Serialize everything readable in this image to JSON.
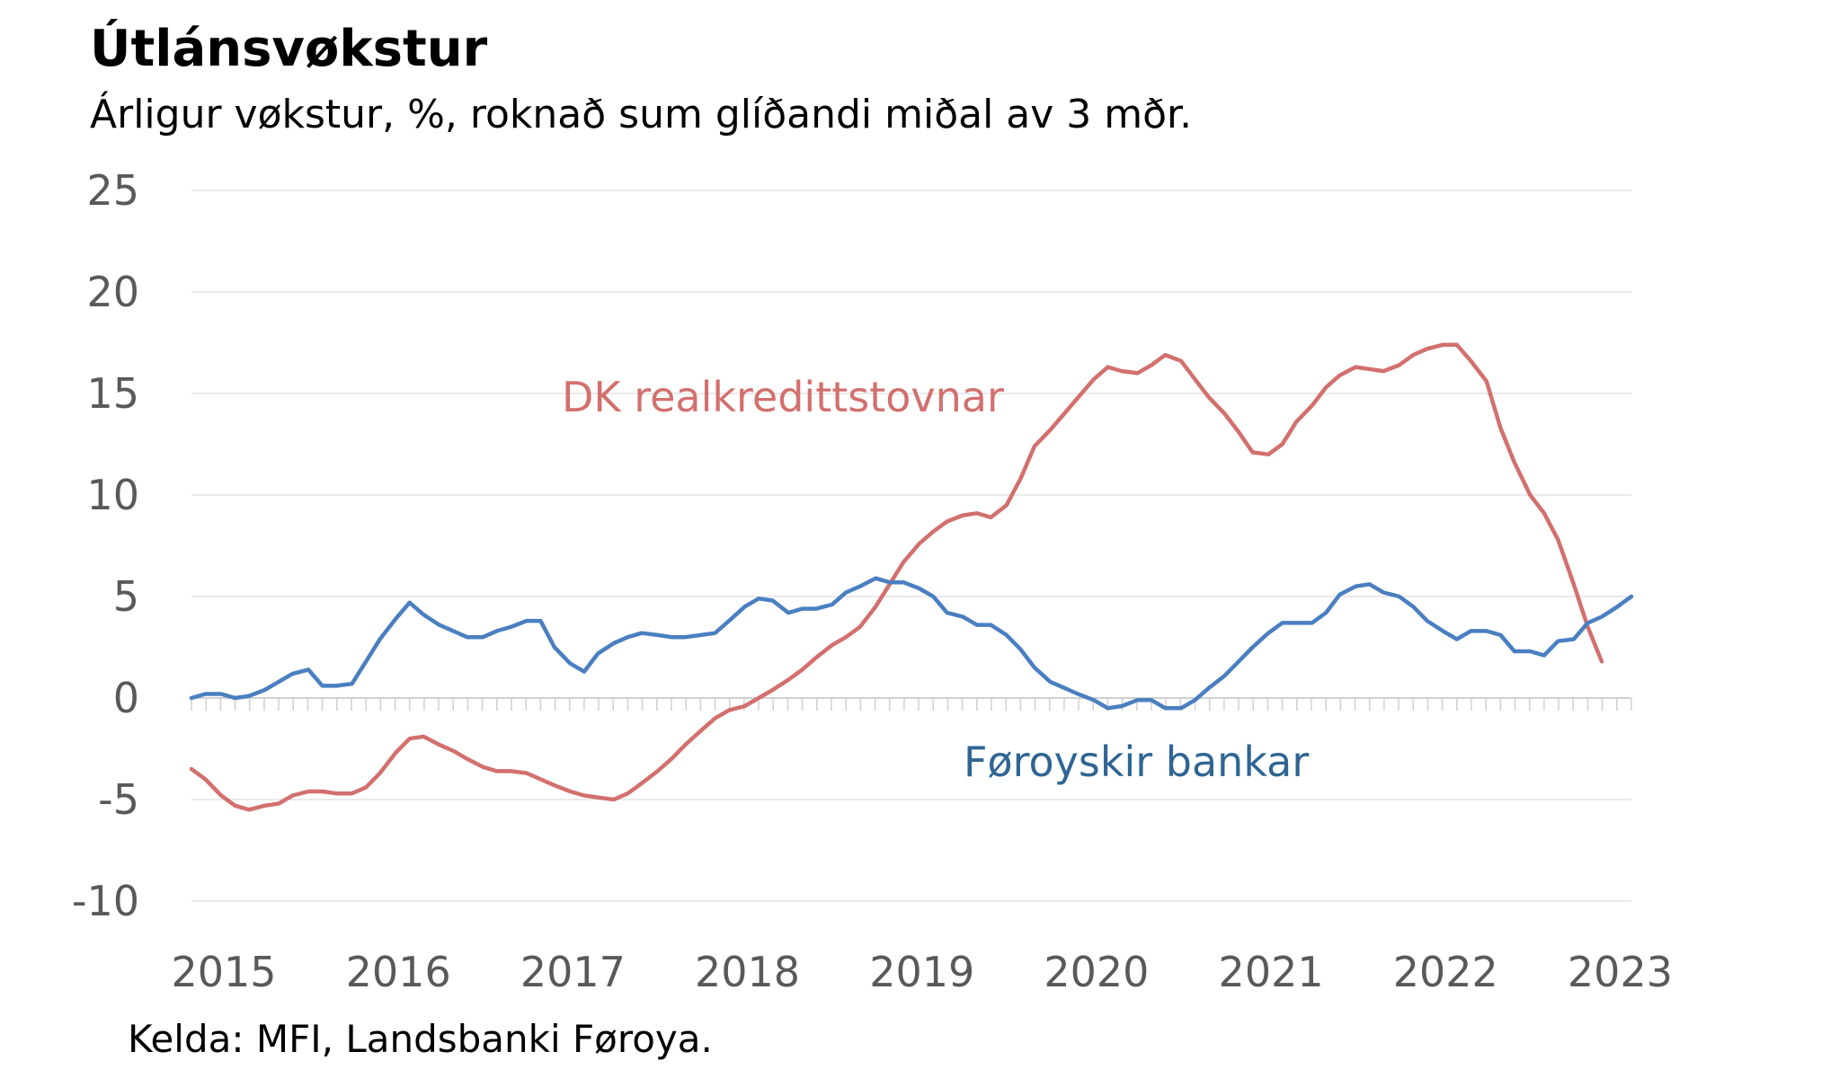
{
  "chart_data": {
    "type": "line",
    "title": "Útlánsvøkstur",
    "subtitle": "Árligur vøkstur, %, roknað sum glíðandi miðal av 3 mðr.",
    "source": "Kelda: MFI, Landsbanki Føroya.",
    "xlabel": "",
    "ylabel": "",
    "ylim": [
      -10,
      25
    ],
    "yticks": [
      "25",
      "20",
      "15",
      "10",
      "5",
      "0",
      "-5",
      "-10"
    ],
    "xticks": [
      "2015",
      "2016",
      "2017",
      "2018",
      "2019",
      "2020",
      "2021",
      "2022",
      "2023"
    ],
    "x_start": 2015,
    "x_end": 2023.25,
    "grid": true,
    "legend": "inline labels",
    "series": [
      {
        "name": "DK realkredittstovnar",
        "color": "#D2706E",
        "points": [
          [
            2015.0,
            -3.5
          ],
          [
            2015.08,
            -4.0
          ],
          [
            2015.17,
            -4.8
          ],
          [
            2015.25,
            -5.3
          ],
          [
            2015.33,
            -5.5
          ],
          [
            2015.42,
            -5.3
          ],
          [
            2015.5,
            -5.2
          ],
          [
            2015.58,
            -4.8
          ],
          [
            2015.67,
            -4.6
          ],
          [
            2015.75,
            -4.6
          ],
          [
            2015.83,
            -4.7
          ],
          [
            2015.92,
            -4.7
          ],
          [
            2016.0,
            -4.4
          ],
          [
            2016.08,
            -3.7
          ],
          [
            2016.17,
            -2.7
          ],
          [
            2016.25,
            -2.0
          ],
          [
            2016.33,
            -1.9
          ],
          [
            2016.42,
            -2.3
          ],
          [
            2016.5,
            -2.6
          ],
          [
            2016.58,
            -3.0
          ],
          [
            2016.67,
            -3.4
          ],
          [
            2016.75,
            -3.6
          ],
          [
            2016.83,
            -3.6
          ],
          [
            2016.92,
            -3.7
          ],
          [
            2017.0,
            -4.0
          ],
          [
            2017.08,
            -4.3
          ],
          [
            2017.17,
            -4.6
          ],
          [
            2017.25,
            -4.8
          ],
          [
            2017.33,
            -4.9
          ],
          [
            2017.42,
            -5.0
          ],
          [
            2017.5,
            -4.7
          ],
          [
            2017.58,
            -4.2
          ],
          [
            2017.67,
            -3.6
          ],
          [
            2017.75,
            -3.0
          ],
          [
            2017.83,
            -2.3
          ],
          [
            2017.92,
            -1.6
          ],
          [
            2018.0,
            -1.0
          ],
          [
            2018.08,
            -0.6
          ],
          [
            2018.17,
            -0.4
          ],
          [
            2018.25,
            0.0
          ],
          [
            2018.33,
            0.4
          ],
          [
            2018.42,
            0.9
          ],
          [
            2018.5,
            1.4
          ],
          [
            2018.58,
            2.0
          ],
          [
            2018.67,
            2.6
          ],
          [
            2018.75,
            3.0
          ],
          [
            2018.83,
            3.5
          ],
          [
            2018.92,
            4.5
          ],
          [
            2019.0,
            5.6
          ],
          [
            2019.08,
            6.7
          ],
          [
            2019.17,
            7.6
          ],
          [
            2019.25,
            8.2
          ],
          [
            2019.33,
            8.7
          ],
          [
            2019.42,
            9.0
          ],
          [
            2019.5,
            9.1
          ],
          [
            2019.58,
            8.9
          ],
          [
            2019.67,
            9.5
          ],
          [
            2019.75,
            10.8
          ],
          [
            2019.83,
            12.4
          ],
          [
            2019.92,
            13.2
          ],
          [
            2020.0,
            14.0
          ],
          [
            2020.08,
            14.8
          ],
          [
            2020.17,
            15.7
          ],
          [
            2020.25,
            16.3
          ],
          [
            2020.33,
            16.1
          ],
          [
            2020.42,
            16.0
          ],
          [
            2020.5,
            16.4
          ],
          [
            2020.58,
            16.9
          ],
          [
            2020.67,
            16.6
          ],
          [
            2020.75,
            15.7
          ],
          [
            2020.83,
            14.8
          ],
          [
            2020.92,
            14.0
          ],
          [
            2021.0,
            13.1
          ],
          [
            2021.08,
            12.1
          ],
          [
            2021.17,
            12.0
          ],
          [
            2021.25,
            12.5
          ],
          [
            2021.33,
            13.6
          ],
          [
            2021.42,
            14.4
          ],
          [
            2021.5,
            15.3
          ],
          [
            2021.58,
            15.9
          ],
          [
            2021.67,
            16.3
          ],
          [
            2021.75,
            16.2
          ],
          [
            2021.83,
            16.1
          ],
          [
            2021.92,
            16.4
          ],
          [
            2022.0,
            16.9
          ],
          [
            2022.08,
            17.2
          ],
          [
            2022.17,
            17.4
          ],
          [
            2022.25,
            17.4
          ],
          [
            2022.33,
            16.6
          ],
          [
            2022.42,
            15.6
          ],
          [
            2022.5,
            13.3
          ],
          [
            2022.58,
            11.6
          ],
          [
            2022.67,
            10.0
          ],
          [
            2022.75,
            9.1
          ],
          [
            2022.83,
            7.8
          ],
          [
            2022.92,
            5.6
          ],
          [
            2023.0,
            3.5
          ],
          [
            2023.08,
            1.8
          ]
        ]
      },
      {
        "name": "Føroyskir bankar",
        "color": "#4A7FC1",
        "label_color": "#2F6593",
        "points": [
          [
            2015.0,
            0.0
          ],
          [
            2015.08,
            0.2
          ],
          [
            2015.17,
            0.2
          ],
          [
            2015.25,
            0.0
          ],
          [
            2015.33,
            0.1
          ],
          [
            2015.42,
            0.4
          ],
          [
            2015.5,
            0.8
          ],
          [
            2015.58,
            1.2
          ],
          [
            2015.67,
            1.4
          ],
          [
            2015.75,
            0.6
          ],
          [
            2015.83,
            0.6
          ],
          [
            2015.92,
            0.7
          ],
          [
            2016.0,
            1.8
          ],
          [
            2016.08,
            2.9
          ],
          [
            2016.17,
            3.9
          ],
          [
            2016.25,
            4.7
          ],
          [
            2016.33,
            4.1
          ],
          [
            2016.42,
            3.6
          ],
          [
            2016.5,
            3.3
          ],
          [
            2016.58,
            3.0
          ],
          [
            2016.67,
            3.0
          ],
          [
            2016.75,
            3.3
          ],
          [
            2016.83,
            3.5
          ],
          [
            2016.92,
            3.8
          ],
          [
            2017.0,
            3.8
          ],
          [
            2017.08,
            2.5
          ],
          [
            2017.17,
            1.7
          ],
          [
            2017.25,
            1.3
          ],
          [
            2017.33,
            2.2
          ],
          [
            2017.42,
            2.7
          ],
          [
            2017.5,
            3.0
          ],
          [
            2017.58,
            3.2
          ],
          [
            2017.67,
            3.1
          ],
          [
            2017.75,
            3.0
          ],
          [
            2017.83,
            3.0
          ],
          [
            2017.92,
            3.1
          ],
          [
            2018.0,
            3.2
          ],
          [
            2018.08,
            3.8
          ],
          [
            2018.17,
            4.5
          ],
          [
            2018.25,
            4.9
          ],
          [
            2018.33,
            4.8
          ],
          [
            2018.42,
            4.2
          ],
          [
            2018.5,
            4.4
          ],
          [
            2018.58,
            4.4
          ],
          [
            2018.67,
            4.6
          ],
          [
            2018.75,
            5.2
          ],
          [
            2018.83,
            5.5
          ],
          [
            2018.92,
            5.9
          ],
          [
            2019.0,
            5.7
          ],
          [
            2019.08,
            5.7
          ],
          [
            2019.17,
            5.4
          ],
          [
            2019.25,
            5.0
          ],
          [
            2019.33,
            4.2
          ],
          [
            2019.42,
            4.0
          ],
          [
            2019.5,
            3.6
          ],
          [
            2019.58,
            3.6
          ],
          [
            2019.67,
            3.1
          ],
          [
            2019.75,
            2.4
          ],
          [
            2019.83,
            1.5
          ],
          [
            2019.92,
            0.8
          ],
          [
            2020.0,
            0.5
          ],
          [
            2020.08,
            0.2
          ],
          [
            2020.17,
            -0.1
          ],
          [
            2020.25,
            -0.5
          ],
          [
            2020.33,
            -0.4
          ],
          [
            2020.42,
            -0.1
          ],
          [
            2020.5,
            -0.1
          ],
          [
            2020.58,
            -0.5
          ],
          [
            2020.67,
            -0.5
          ],
          [
            2020.75,
            -0.1
          ],
          [
            2020.83,
            0.5
          ],
          [
            2020.92,
            1.1
          ],
          [
            2021.0,
            1.8
          ],
          [
            2021.08,
            2.5
          ],
          [
            2021.17,
            3.2
          ],
          [
            2021.25,
            3.7
          ],
          [
            2021.33,
            3.7
          ],
          [
            2021.42,
            3.7
          ],
          [
            2021.5,
            4.2
          ],
          [
            2021.58,
            5.1
          ],
          [
            2021.67,
            5.5
          ],
          [
            2021.75,
            5.6
          ],
          [
            2021.83,
            5.2
          ],
          [
            2021.92,
            5.0
          ],
          [
            2022.0,
            4.5
          ],
          [
            2022.08,
            3.8
          ],
          [
            2022.17,
            3.3
          ],
          [
            2022.25,
            2.9
          ],
          [
            2022.33,
            3.3
          ],
          [
            2022.42,
            3.3
          ],
          [
            2022.5,
            3.1
          ],
          [
            2022.58,
            2.3
          ],
          [
            2022.67,
            2.3
          ],
          [
            2022.75,
            2.1
          ],
          [
            2022.83,
            2.8
          ],
          [
            2022.92,
            2.9
          ],
          [
            2023.0,
            3.7
          ],
          [
            2023.08,
            4.0
          ],
          [
            2023.17,
            4.5
          ],
          [
            2023.25,
            5.0
          ]
        ]
      }
    ]
  }
}
